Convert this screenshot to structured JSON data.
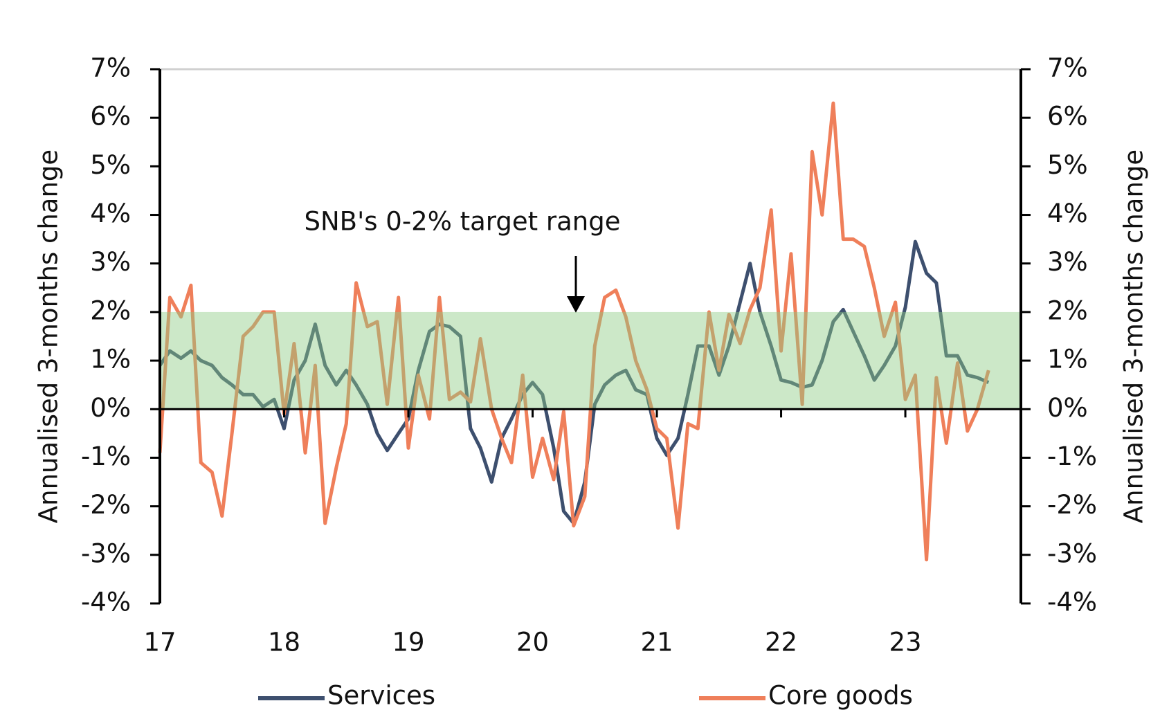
{
  "chart_data": {
    "type": "line",
    "y_label": "Annualised 3-months change",
    "y2_label": "Annualised 3-months change",
    "annotation": "SNB's 0-2% target range",
    "band": {
      "from": 0,
      "to": 2,
      "color": "#8fcc85"
    },
    "x": [
      17,
      17.08,
      17.17,
      17.25,
      17.33,
      17.42,
      17.5,
      17.58,
      17.67,
      17.75,
      17.83,
      17.92,
      18,
      18.08,
      18.17,
      18.25,
      18.33,
      18.42,
      18.5,
      18.58,
      18.67,
      18.75,
      18.83,
      18.92,
      19,
      19.08,
      19.17,
      19.25,
      19.33,
      19.42,
      19.5,
      19.58,
      19.67,
      19.75,
      19.83,
      19.92,
      20,
      20.08,
      20.17,
      20.25,
      20.33,
      20.42,
      20.5,
      20.58,
      20.67,
      20.75,
      20.83,
      20.92,
      21,
      21.08,
      21.17,
      21.25,
      21.33,
      21.42,
      21.5,
      21.58,
      21.67,
      21.75,
      21.83,
      21.92,
      22,
      22.08,
      22.17,
      22.25,
      22.33,
      22.42,
      22.5,
      22.58,
      22.67,
      22.75,
      22.83,
      22.92,
      23,
      23.08,
      23.17,
      23.25,
      23.33,
      23.42,
      23.5,
      23.58,
      23.67
    ],
    "series": [
      {
        "name": "Services",
        "color": "#3d4f6e",
        "values": [
          0.9,
          1.2,
          1.05,
          1.2,
          1.0,
          0.9,
          0.65,
          0.5,
          0.3,
          0.3,
          0.05,
          0.2,
          -0.4,
          0.6,
          1.0,
          1.75,
          0.9,
          0.5,
          0.8,
          0.5,
          0.1,
          -0.5,
          -0.85,
          -0.5,
          -0.2,
          0.8,
          1.6,
          1.75,
          1.7,
          1.5,
          -0.4,
          -0.8,
          -1.5,
          -0.6,
          -0.2,
          0.3,
          0.55,
          0.3,
          -0.8,
          -2.1,
          -2.35,
          -1.5,
          0.1,
          0.5,
          0.7,
          0.8,
          0.4,
          0.3,
          -0.6,
          -0.95,
          -0.6,
          0.3,
          1.3,
          1.3,
          0.7,
          1.3,
          2.2,
          3.0,
          2.0,
          1.3,
          0.6,
          0.55,
          0.45,
          0.5,
          1.0,
          1.8,
          2.05,
          1.6,
          1.1,
          0.6,
          0.9,
          1.3,
          2.1,
          3.45,
          2.8,
          2.6,
          1.1,
          1.1,
          0.7,
          0.65,
          0.55
        ]
      },
      {
        "name": "Core goods",
        "color": "#ef7f5a",
        "values": [
          -0.9,
          2.3,
          1.9,
          2.55,
          -1.1,
          -1.3,
          -2.2,
          -0.5,
          1.5,
          1.7,
          2.0,
          2.0,
          -0.1,
          1.35,
          -0.9,
          0.9,
          -2.35,
          -1.2,
          -0.3,
          2.6,
          1.7,
          1.8,
          0.1,
          2.3,
          -0.8,
          0.7,
          -0.2,
          2.3,
          0.2,
          0.35,
          0.15,
          1.45,
          0.0,
          -0.6,
          -1.1,
          0.7,
          -1.4,
          -0.6,
          -1.45,
          -0.05,
          -2.4,
          -1.8,
          1.3,
          2.3,
          2.45,
          1.9,
          1.0,
          0.4,
          -0.4,
          -0.6,
          -2.45,
          -0.3,
          -0.4,
          2.0,
          0.8,
          1.95,
          1.35,
          2.05,
          2.5,
          4.1,
          1.2,
          3.2,
          0.1,
          5.3,
          4.0,
          6.3,
          3.5,
          3.5,
          3.35,
          2.5,
          1.5,
          2.2,
          0.2,
          0.7,
          -3.1,
          0.65,
          -0.7,
          0.95,
          -0.45,
          0.0,
          0.8
        ]
      }
    ],
    "xlim": [
      17,
      23.93
    ],
    "xticks": [
      17,
      18,
      19,
      20,
      21,
      22,
      23
    ],
    "ylim": [
      -4,
      7
    ],
    "yticks": [
      {
        "value": -4,
        "label": "-4%"
      },
      {
        "value": -3,
        "label": "-3%"
      },
      {
        "value": -2,
        "label": "-2%"
      },
      {
        "value": -1,
        "label": "-1%"
      },
      {
        "value": 0,
        "label": "0%"
      },
      {
        "value": 1,
        "label": "1%"
      },
      {
        "value": 2,
        "label": "2%"
      },
      {
        "value": 3,
        "label": "3%"
      },
      {
        "value": 4,
        "label": "4%"
      },
      {
        "value": 5,
        "label": "5%"
      },
      {
        "value": 6,
        "label": "6%"
      },
      {
        "value": 7,
        "label": "7%"
      }
    ],
    "y2lim": [
      -4,
      7
    ],
    "y2ticks": [
      {
        "value": -4,
        "label": "-4%"
      },
      {
        "value": -3,
        "label": "-3%"
      },
      {
        "value": -2,
        "label": "-2%"
      },
      {
        "value": -1,
        "label": "-1%"
      },
      {
        "value": 0,
        "label": "0%"
      },
      {
        "value": 1,
        "label": "1%"
      },
      {
        "value": 2,
        "label": "2%"
      },
      {
        "value": 3,
        "label": "3%"
      },
      {
        "value": 4,
        "label": "4%"
      },
      {
        "value": 5,
        "label": "5%"
      },
      {
        "value": 6,
        "label": "6%"
      },
      {
        "value": 7,
        "label": "7%"
      }
    ],
    "grid": false
  }
}
